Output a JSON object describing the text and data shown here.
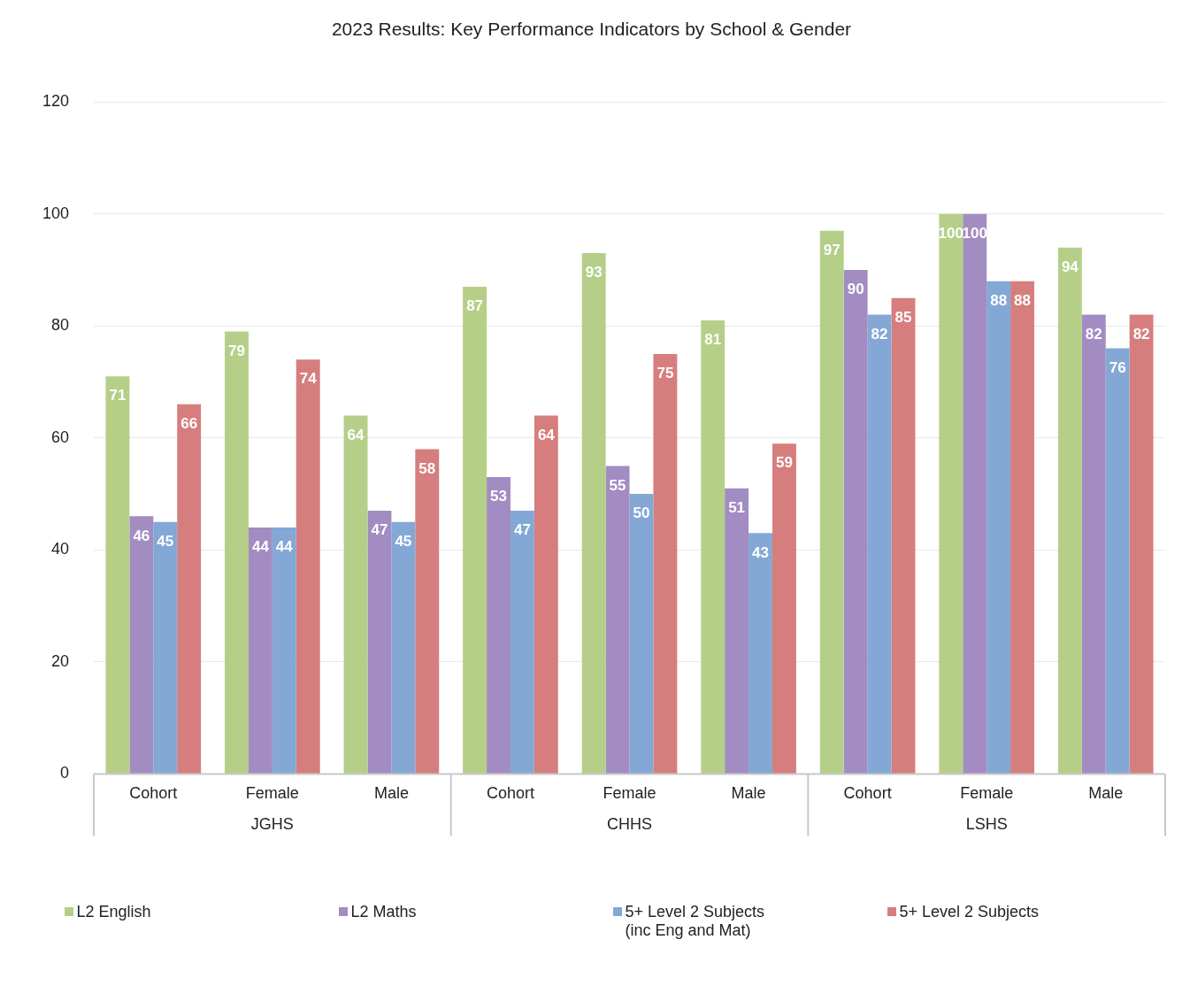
{
  "chart_data": {
    "type": "bar",
    "title": "2023 Results: Key Performance Indicators by School & Gender",
    "categories": [
      "Cohort",
      "Female",
      "Male",
      "Cohort",
      "Female",
      "Male",
      "Cohort",
      "Female",
      "Male"
    ],
    "series": [
      {
        "name": "L2  English",
        "color": "#b5cf88",
        "values": [
          71,
          79,
          64,
          87,
          93,
          81,
          97,
          100,
          94
        ]
      },
      {
        "name": "L2    Maths",
        "color": "#a28cc2",
        "values": [
          46,
          44,
          47,
          53,
          55,
          51,
          90,
          100,
          82
        ]
      },
      {
        "name": "5+ Level 2 Subjects\n(inc Eng and Mat)",
        "color": "#84a8d5",
        "values": [
          45,
          44,
          45,
          47,
          50,
          43,
          82,
          88,
          76
        ]
      },
      {
        "name": "5+ Level 2 Subjects",
        "color": "#d67e7e",
        "values": [
          66,
          74,
          58,
          64,
          75,
          59,
          85,
          88,
          82
        ]
      }
    ],
    "annotations": [
      "JGHS",
      "CHHS",
      "LSHS"
    ],
    "ylim": [
      0,
      120
    ],
    "yticks": [
      0,
      20,
      40,
      60,
      80,
      100,
      120
    ],
    "grid": "y",
    "legend": "bottom",
    "data_labels": true
  }
}
